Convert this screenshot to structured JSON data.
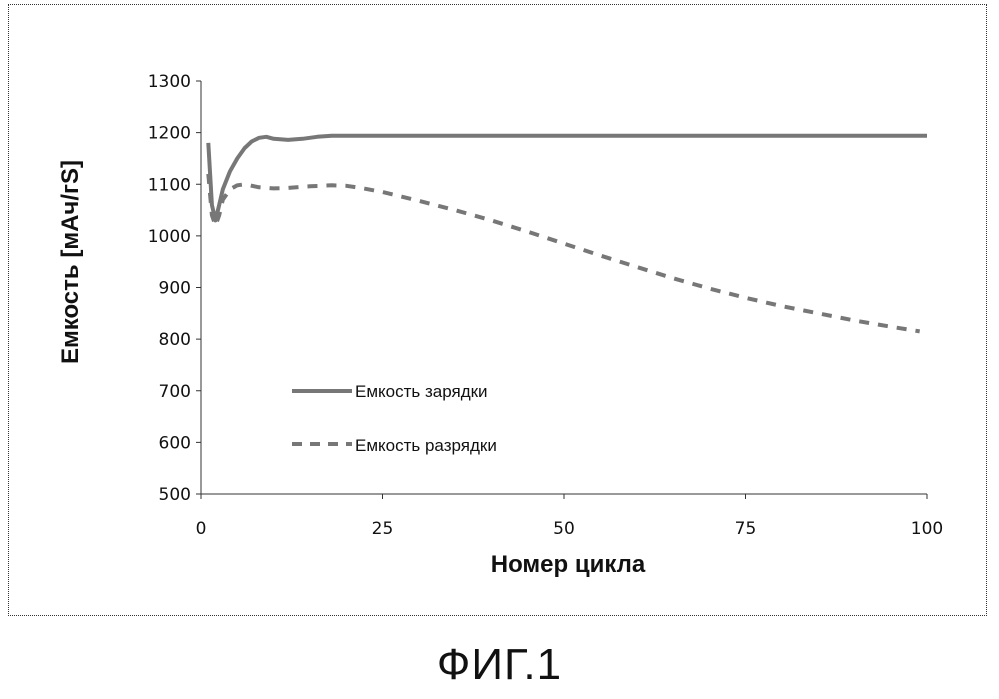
{
  "figure": {
    "caption": "ФИГ.1"
  },
  "chart_data": {
    "type": "line",
    "xlabel": "Номер цикла",
    "ylabel": "Емкость [мАч/гS]",
    "xlim": [
      0,
      100
    ],
    "ylim": [
      500,
      1300
    ],
    "xticks": [
      0,
      25,
      50,
      75,
      100
    ],
    "yticks": [
      500,
      600,
      700,
      800,
      900,
      1000,
      1100,
      1200,
      1300
    ],
    "grid": false,
    "legend_position": "left",
    "series": [
      {
        "name": "Емкость зарядки",
        "color": "#777777",
        "style": "solid",
        "x": [
          1,
          1.5,
          2,
          2.5,
          3,
          4,
          5,
          6,
          7,
          8,
          9,
          10,
          12,
          14,
          16,
          18,
          20,
          25,
          30,
          40,
          50,
          60,
          70,
          80,
          90,
          100
        ],
        "y": [
          1180,
          1060,
          1030,
          1060,
          1090,
          1125,
          1150,
          1170,
          1183,
          1190,
          1192,
          1188,
          1186,
          1188,
          1192,
          1194,
          1194,
          1194,
          1194,
          1194,
          1194,
          1194,
          1194,
          1194,
          1194,
          1194
        ]
      },
      {
        "name": "Емкость разрядки",
        "color": "#777777",
        "style": "dashed",
        "x": [
          1,
          1.5,
          2,
          2.5,
          3,
          4,
          5,
          6,
          8,
          10,
          12,
          15,
          18,
          20,
          22,
          25,
          30,
          35,
          40,
          45,
          50,
          55,
          60,
          65,
          70,
          75,
          80,
          85,
          90,
          95,
          99
        ],
        "y": [
          1120,
          1040,
          1020,
          1040,
          1070,
          1090,
          1098,
          1100,
          1094,
          1092,
          1093,
          1096,
          1098,
          1097,
          1093,
          1085,
          1068,
          1050,
          1030,
          1008,
          985,
          962,
          940,
          918,
          898,
          880,
          864,
          850,
          836,
          824,
          815
        ]
      }
    ]
  }
}
